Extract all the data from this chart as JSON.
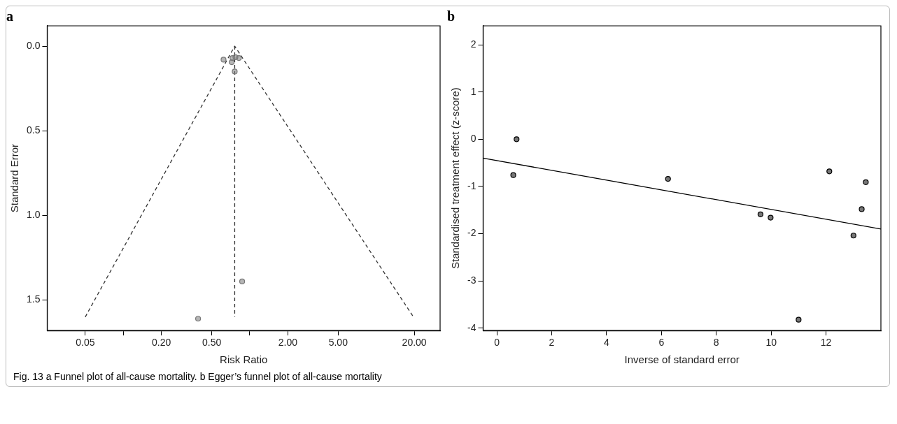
{
  "chart_data": [
    {
      "type": "scatter",
      "title": "a",
      "xlabel": "Risk Ratio",
      "ylabel": "Standard Error",
      "log": "x",
      "grid": false,
      "legend": false,
      "marker": "circle",
      "xlim": [
        0.025,
        32
      ],
      "ylim": [
        1.68,
        -0.12
      ],
      "xticks": [
        0.05,
        {
          "value": 0.1,
          "label": null
        },
        {
          "value": 0.2,
          "label": "0.20"
        },
        {
          "value": 0.5,
          "label": "0.50"
        },
        {
          "value": 1,
          "label": null
        },
        {
          "value": 2,
          "label": "2.00"
        },
        {
          "value": 5,
          "label": "5.00"
        },
        {
          "value": 20,
          "label": "20.00"
        }
      ],
      "yticks": [
        {
          "value": 0,
          "label": "0.0"
        },
        {
          "value": 0.5,
          "label": "0.5"
        },
        {
          "value": 1,
          "label": "1.0"
        },
        {
          "value": 1.5,
          "label": "1.5"
        }
      ],
      "series": [
        {
          "type": "scatter",
          "color": "#777777",
          "x": [
            0.62,
            0.73,
            0.82,
            0.77,
            0.72,
            0.76,
            0.87,
            0.39
          ],
          "values": [
            0.08,
            0.07,
            0.07,
            0.065,
            0.095,
            0.15,
            1.39,
            1.61
          ]
        },
        {
          "type": "line",
          "color": "#333333",
          "line_style": "dashed",
          "marker": "none",
          "x": [
            0.05,
            0.76,
            19.7
          ],
          "values": [
            1.6,
            0,
            1.6
          ]
        },
        {
          "type": "line",
          "color": "#333333",
          "line_style": "dashed",
          "marker": "none",
          "x": [
            0.76,
            0.76
          ],
          "values": [
            0,
            1.6
          ]
        }
      ],
      "annotations": [
        "Fig. 13 a Funnel plot of all-cause mortality. b Egger’s funnel plot of all-cause mortality"
      ]
    },
    {
      "type": "scatter",
      "title": "b",
      "xlabel": "Inverse of standard error",
      "ylabel": "Standardised treatment effect (z-score)",
      "grid": false,
      "legend": false,
      "marker": "circle",
      "xlim": [
        -0.5,
        14
      ],
      "ylim": [
        -4.05,
        2.4
      ],
      "xticks": [
        0,
        2,
        4,
        6,
        8,
        10,
        12
      ],
      "yticks": [
        -4,
        -3,
        -2,
        -1,
        0,
        1,
        2
      ],
      "series": [
        {
          "type": "scatter",
          "color": "#000000",
          "x": [
            0.72,
            0.6,
            6.24,
            9.61,
            9.98,
            11.0,
            12.12,
            13.0,
            13.3,
            13.45
          ],
          "values": [
            0,
            -0.76,
            -0.84,
            -1.59,
            -1.66,
            -3.82,
            -0.68,
            -2.04,
            -1.48,
            -0.91
          ]
        },
        {
          "type": "line",
          "color": "#000000",
          "marker": "none",
          "x": [
            -0.5,
            14
          ],
          "values": [
            -0.4,
            -1.9
          ]
        }
      ]
    }
  ]
}
